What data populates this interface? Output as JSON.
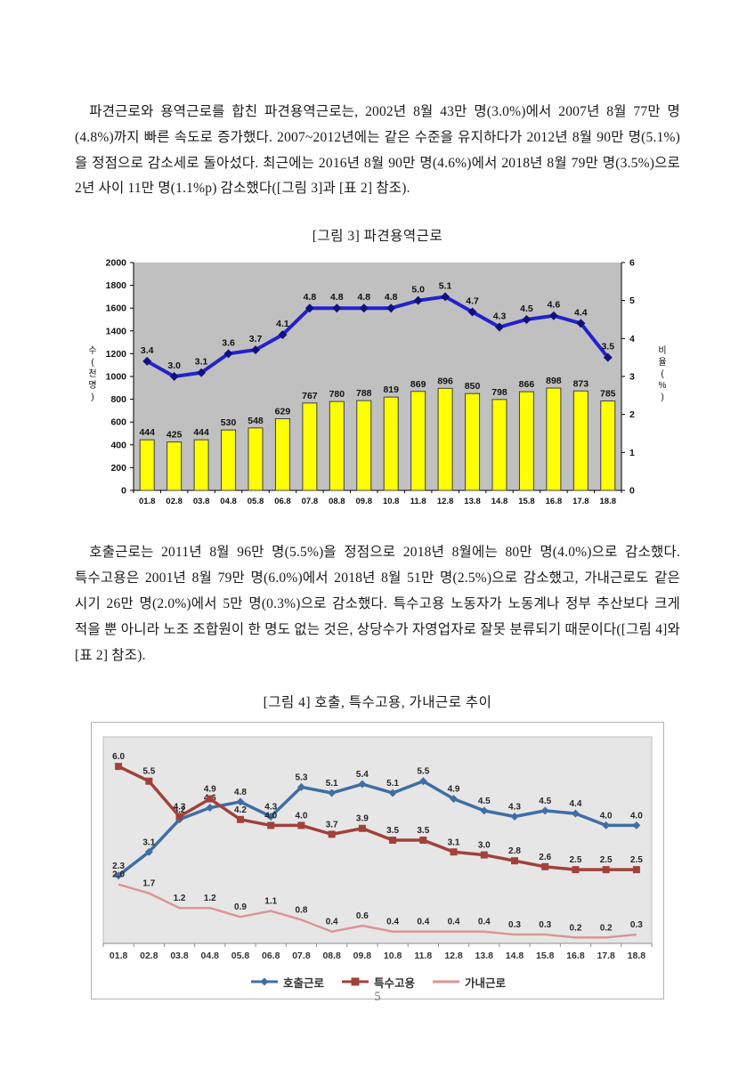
{
  "page": {
    "number": "5"
  },
  "paragraphs": [
    "파견근로와 용역근로를 합친 파견용역근로는, 2002년 8월 43만 명(3.0%)에서 2007년 8월 77만 명(4.8%)까지 빠른 속도로 증가했다. 2007~2012년에는 같은 수준을 유지하다가 2012년 8월 90만 명(5.1%)을 정점으로 감소세로 돌아섰다. 최근에는 2016년 8월 90만 명(4.6%)에서 2018년 8월 79만 명(3.5%)으로 2년 사이 11만 명(1.1%p) 감소했다([그림 3]과 [표 2] 참조).",
    "호출근로는 2011년 8월 96만 명(5.5%)을 정점으로 2018년 8월에는 80만 명(4.0%)으로 감소했다. 특수고용은 2001년 8월 79만 명(6.0%)에서 2018년 8월 51만 명(2.5%)으로 감소했고, 가내근로도 같은 시기 26만 명(2.0%)에서 5만 명(0.3%)으로 감소했다. 특수고용 노동자가 노동계나 정부 추산보다 크게 적을 뿐 아니라 노조 조합원이 한 명도 없는 것은, 상당수가 자영업자로 잘못 분류되기 때문이다([그림 4]와 [표 2] 참조)."
  ],
  "chart_data": [
    {
      "type": "bar",
      "title": "[그림 3] 파견용역근로",
      "categories": [
        "01.8",
        "02.8",
        "03.8",
        "04.8",
        "05.8",
        "06.8",
        "07.8",
        "08.8",
        "09.8",
        "10.8",
        "11.8",
        "12.8",
        "13.8",
        "14.8",
        "15.8",
        "16.8",
        "17.8",
        "18.8"
      ],
      "series": [
        {
          "name": "수(천 명)",
          "render": "bar",
          "axis": "left",
          "color": "#FFFF00",
          "border_color": "#404040",
          "values": [
            444,
            425,
            444,
            530,
            548,
            629,
            767,
            780,
            788,
            819,
            869,
            896,
            850,
            798,
            866,
            898,
            873,
            785
          ]
        },
        {
          "name": "비율(%)",
          "render": "line",
          "axis": "right",
          "color": "#2222CC",
          "marker": "diamond",
          "marker_color": "#10107E",
          "values": [
            3.4,
            3.0,
            3.1,
            3.6,
            3.7,
            4.1,
            4.8,
            4.8,
            4.8,
            4.8,
            5.0,
            5.1,
            4.7,
            4.3,
            4.5,
            4.6,
            4.4,
            3.5
          ]
        }
      ],
      "left_axis": {
        "title": "수(천 명)",
        "min": 0,
        "max": 2000,
        "step": 200
      },
      "right_axis": {
        "title": "비율(%)",
        "min": 0,
        "max": 6,
        "step": 1
      },
      "plot_bg": "#C0C0C0",
      "grid": false,
      "legend_position": "none"
    },
    {
      "type": "line",
      "title": "[그림 4] 호출, 특수고용, 가내근로 추이",
      "categories": [
        "01.8",
        "02.8",
        "03.8",
        "04.8",
        "05.8",
        "06.8",
        "07.8",
        "08.8",
        "09.8",
        "10.8",
        "11.8",
        "12.8",
        "13.8",
        "14.8",
        "15.8",
        "16.8",
        "17.8",
        "18.8"
      ],
      "series": [
        {
          "name": "호출근로",
          "color": "#3E6EA5",
          "marker": "diamond",
          "values": [
            2.3,
            3.1,
            4.2,
            4.6,
            4.8,
            4.3,
            5.3,
            5.1,
            5.4,
            5.1,
            5.5,
            4.9,
            4.5,
            4.3,
            4.5,
            4.4,
            4.0,
            4.0
          ]
        },
        {
          "name": "특수고용",
          "color": "#A1413A",
          "marker": "square",
          "values": [
            6.0,
            5.5,
            4.3,
            4.9,
            4.2,
            4.0,
            4.0,
            3.7,
            3.9,
            3.5,
            3.5,
            3.1,
            3.0,
            2.8,
            2.6,
            2.5,
            2.5,
            2.5
          ]
        },
        {
          "name": "가내근로",
          "color": "#D99694",
          "marker": "none",
          "values": [
            2.0,
            1.7,
            1.2,
            1.2,
            0.9,
            1.1,
            0.8,
            0.4,
            0.6,
            0.4,
            0.4,
            0.4,
            0.4,
            0.3,
            0.3,
            0.2,
            0.2,
            0.3
          ]
        }
      ],
      "ylim": [
        0,
        7
      ],
      "plot_bg": "#E7E6E6",
      "grid": false,
      "legend_position": "bottom"
    }
  ]
}
